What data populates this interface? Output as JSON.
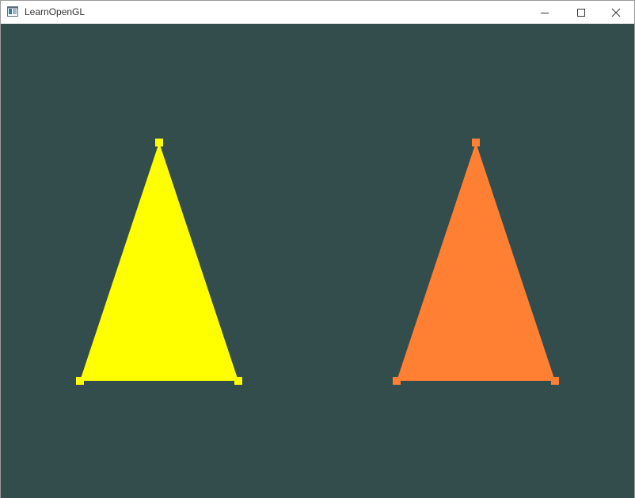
{
  "window": {
    "title": "LearnOpenGL",
    "clear_color": "#334c4c"
  },
  "titlebar": {
    "icon": "opengl-app-icon",
    "controls": [
      "minimize-icon",
      "maximize-icon",
      "close-icon"
    ]
  },
  "scene": {
    "triangles": [
      {
        "name": "yellow-triangle",
        "color": "#ffff00"
      },
      {
        "name": "orange-triangle",
        "color": "#ff7f33"
      }
    ]
  }
}
